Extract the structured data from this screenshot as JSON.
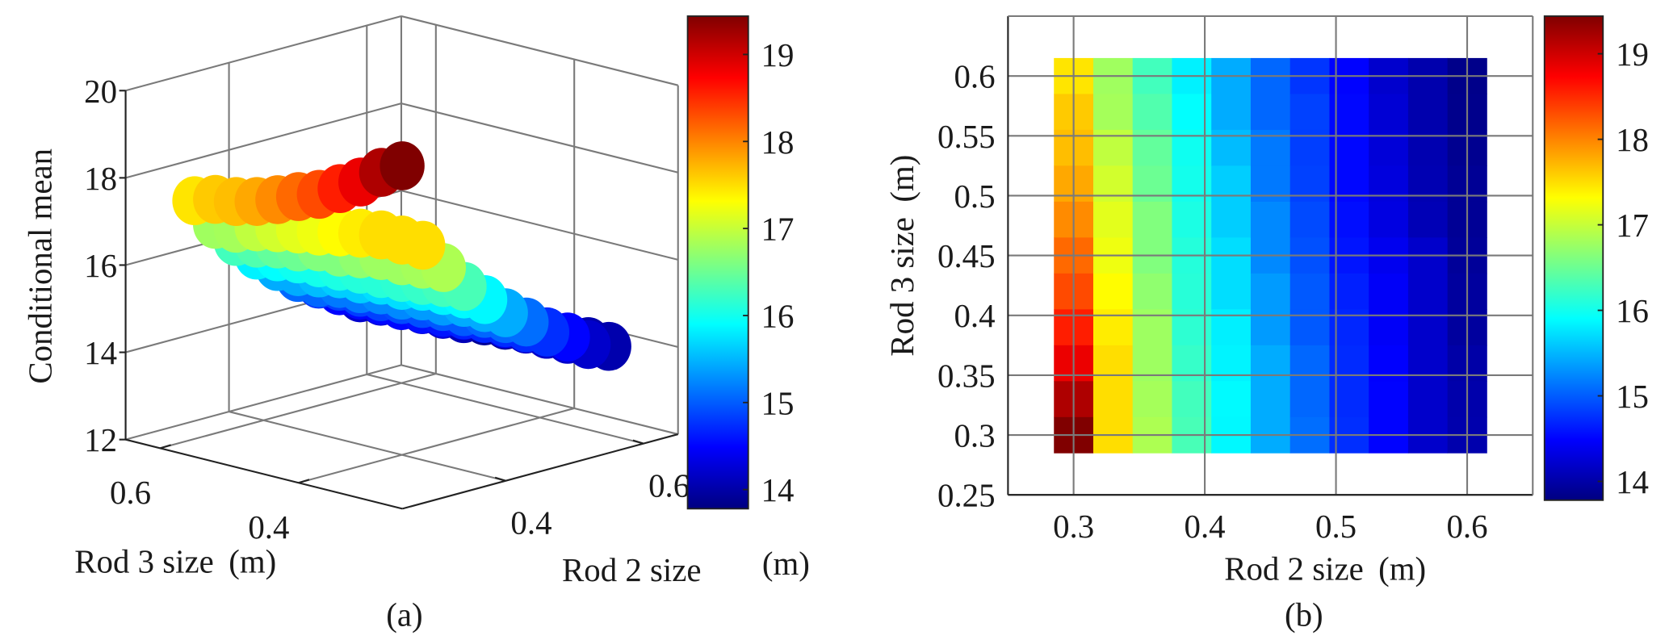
{
  "chart_data": [
    {
      "type": "scatter",
      "panel_label": "(a)",
      "title": "",
      "xlabel": "Rod 2 size",
      "xlabel_unit": "(m)",
      "ylabel": "Rod 3 size",
      "ylabel_unit": "(m)",
      "zlabel": "Conditional mean",
      "xlim": [
        0.25,
        0.65
      ],
      "ylim": [
        0.25,
        0.65
      ],
      "zlim": [
        12,
        20
      ],
      "xticks": [
        "0.4",
        "0.6"
      ],
      "yticks": [
        "0.4",
        "0.6"
      ],
      "zticks": [
        "12",
        "14",
        "16",
        "18",
        "20"
      ],
      "colormap": "jet",
      "clim": [
        13.78,
        19.44
      ],
      "colorbar_ticks": [
        "14",
        "15",
        "16",
        "17",
        "18",
        "19"
      ],
      "grid": true
    },
    {
      "type": "heatmap",
      "panel_label": "(b)",
      "title": "",
      "xlabel": "Rod 2 size",
      "xlabel_unit": "(m)",
      "ylabel": "Rod 3 size",
      "ylabel_unit": "(m)",
      "xlim": [
        0.25,
        0.65
      ],
      "ylim": [
        0.25,
        0.65
      ],
      "xticks": [
        "0.3",
        "0.4",
        "0.5",
        "0.6"
      ],
      "yticks": [
        "0.25",
        "0.3",
        "0.35",
        "0.4",
        "0.45",
        "0.5",
        "0.55",
        "0.6"
      ],
      "colormap": "jet",
      "clim": [
        13.78,
        19.44
      ],
      "colorbar_ticks": [
        "14",
        "15",
        "16",
        "17",
        "18",
        "19"
      ],
      "grid": true
    }
  ],
  "grid_data": {
    "x_rod2": [
      0.3,
      0.33,
      0.36,
      0.39,
      0.42,
      0.45,
      0.48,
      0.51,
      0.54,
      0.57,
      0.6
    ],
    "y_rod3_top_to_bottom": [
      0.6,
      0.57,
      0.54,
      0.51,
      0.48,
      0.45,
      0.42,
      0.39,
      0.36,
      0.33,
      0.3
    ],
    "z_columns_by_x": [
      [
        17.46,
        17.61,
        17.68,
        17.8,
        17.96,
        18.15,
        18.32,
        18.57,
        18.84,
        19.18,
        19.45
      ],
      [
        16.79,
        16.82,
        16.97,
        17.07,
        17.16,
        17.23,
        17.33,
        17.42,
        17.5,
        17.5,
        17.5
      ],
      [
        16.27,
        16.35,
        16.45,
        16.5,
        16.62,
        16.62,
        16.7,
        16.78,
        16.78,
        16.82,
        16.86
      ],
      [
        15.83,
        15.91,
        15.98,
        16.01,
        16.05,
        16.1,
        16.12,
        16.15,
        16.2,
        16.27,
        16.3
      ],
      [
        15.44,
        15.44,
        15.53,
        15.63,
        15.63,
        15.72,
        15.72,
        15.82,
        15.84,
        15.88,
        15.87
      ],
      [
        15.06,
        15.06,
        15.16,
        15.16,
        15.25,
        15.25,
        15.35,
        15.35,
        15.44,
        15.44,
        15.44
      ],
      [
        14.78,
        14.85,
        14.83,
        14.85,
        14.9,
        14.93,
        14.98,
        14.98,
        15.06,
        15.06,
        15.1
      ],
      [
        14.5,
        14.52,
        14.52,
        14.52,
        14.56,
        14.6,
        14.66,
        14.7,
        14.72,
        14.72,
        14.74
      ],
      [
        14.21,
        14.25,
        14.27,
        14.3,
        14.32,
        14.4,
        14.45,
        14.45,
        14.48,
        14.5,
        14.5
      ],
      [
        14.03,
        14.03,
        14.05,
        14.06,
        14.08,
        14.2,
        14.2,
        14.2,
        14.2,
        14.2,
        14.2
      ],
      [
        13.84,
        13.85,
        13.87,
        13.9,
        13.9,
        13.92,
        13.95,
        13.95,
        14.0,
        14.02,
        14.03
      ]
    ]
  }
}
